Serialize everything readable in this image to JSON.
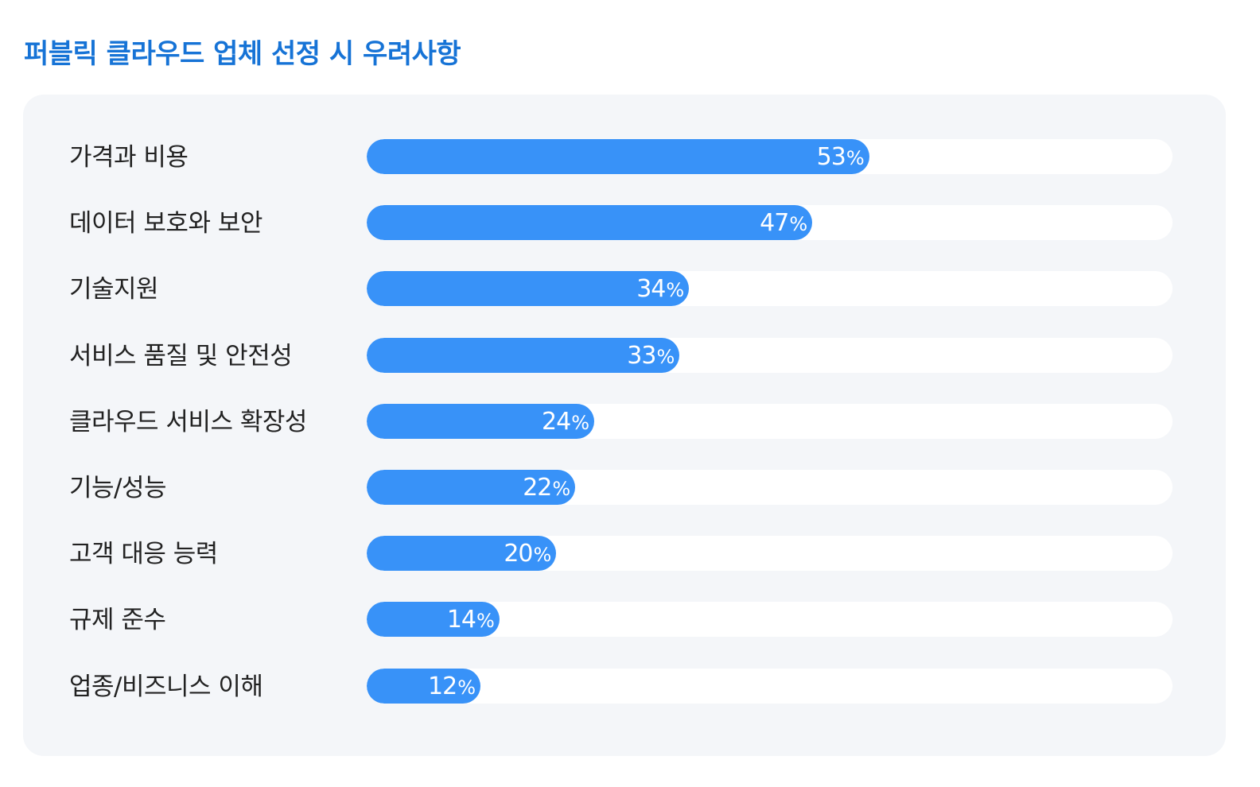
{
  "chart_data": {
    "type": "bar",
    "orientation": "horizontal",
    "title": "퍼블릭 클라우드 업체 선정 시 우려사항",
    "xlabel": "",
    "ylabel": "",
    "xlim": [
      0,
      85
    ],
    "unit": "%",
    "categories": [
      "가격과 비용",
      "데이터 보호와 보안",
      "기술지원",
      "서비스 품질 및 안전성",
      "클라우드 서비스 확장성",
      "기능/성능",
      "고객 대응 능력",
      "규제 준수",
      "업종/비즈니스 이해"
    ],
    "values": [
      53,
      47,
      34,
      33,
      24,
      22,
      20,
      14,
      12
    ],
    "colors": {
      "bar": "#3892f8",
      "track": "#ffffff",
      "panel": "#f4f6f9",
      "title": "#1673d6",
      "label": "#222222",
      "value_text": "#ffffff"
    }
  }
}
